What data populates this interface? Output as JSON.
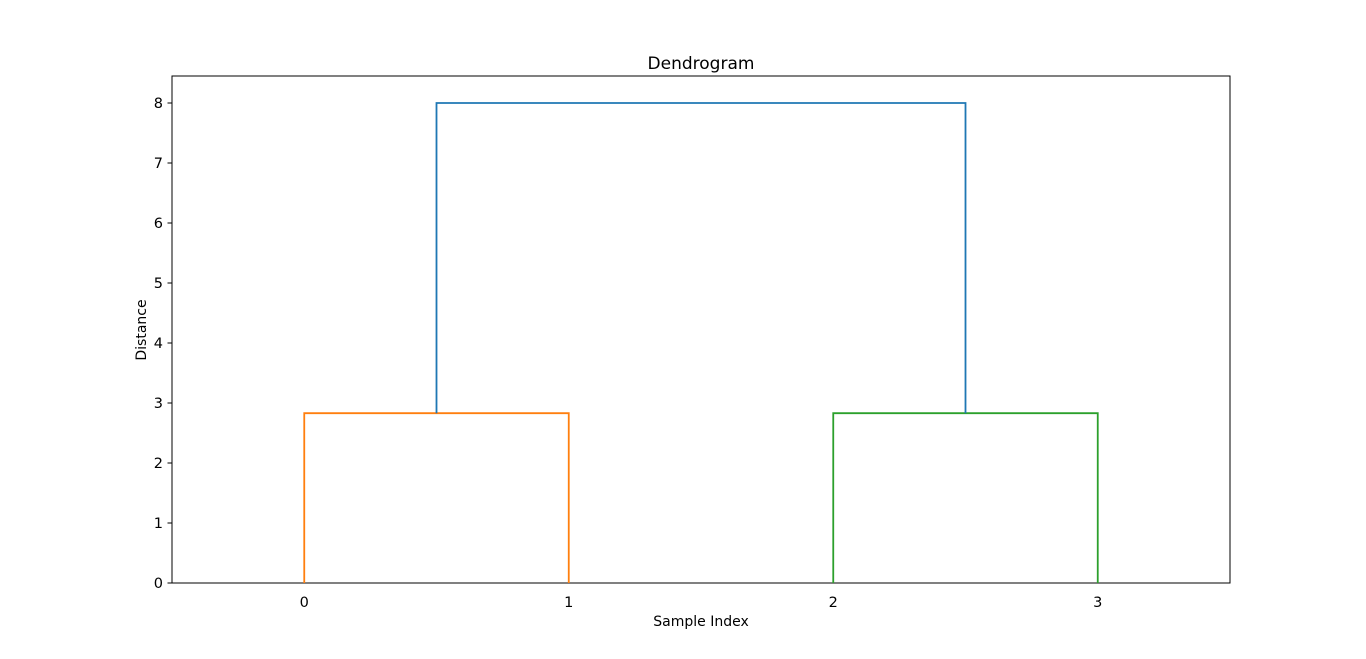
{
  "chart_data": {
    "type": "dendrogram",
    "title": "Dendrogram",
    "xlabel": "Sample Index",
    "ylabel": "Distance",
    "background_color": "#ffffff",
    "axis_color": "#000000",
    "xlim": [
      0,
      40
    ],
    "ylim": [
      0,
      8.45
    ],
    "grid": false,
    "legend": false,
    "leaf_labels": [
      "0",
      "1",
      "2",
      "3"
    ],
    "leaf_positions": [
      5,
      15,
      25,
      35
    ],
    "yticks": [
      0,
      1,
      2,
      3,
      4,
      5,
      6,
      7,
      8
    ],
    "merges": [
      {
        "members": [
          "0",
          "1"
        ],
        "distance": 2.83,
        "color_name": "orange"
      },
      {
        "members": [
          "2",
          "3"
        ],
        "distance": 2.83,
        "color_name": "green"
      },
      {
        "members": [
          "cluster(0,1)",
          "cluster(2,3)"
        ],
        "distance": 8.0,
        "color_name": "blue"
      }
    ],
    "links": [
      {
        "name": "cluster-0-1",
        "color": "#ff7f0e",
        "x": [
          5,
          5,
          15,
          15
        ],
        "y": [
          0,
          2.83,
          2.83,
          0
        ]
      },
      {
        "name": "cluster-2-3",
        "color": "#2ca02c",
        "x": [
          25,
          25,
          35,
          35
        ],
        "y": [
          0,
          2.83,
          2.83,
          0
        ]
      },
      {
        "name": "root-link",
        "color": "#1f77b4",
        "x": [
          10,
          10,
          30,
          30
        ],
        "y": [
          2.83,
          8.0,
          8.0,
          2.83
        ]
      }
    ],
    "colors": {
      "blue": "#1f77b4",
      "orange": "#ff7f0e",
      "green": "#2ca02c"
    }
  }
}
